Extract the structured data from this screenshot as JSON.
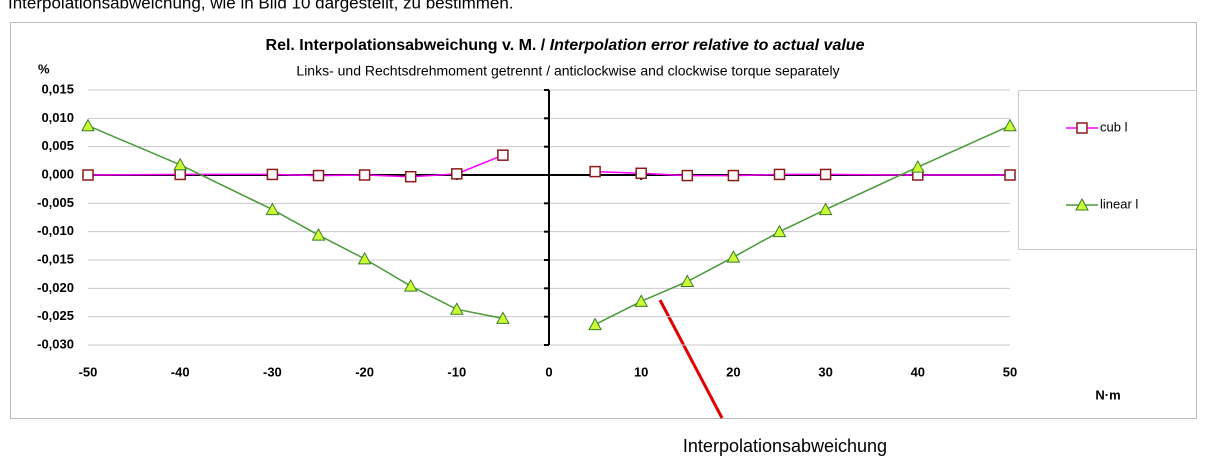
{
  "intro_text": "Interpolationsabweichung, wie in Bild 10 dargestellt, zu bestimmen.",
  "chart_data": {
    "type": "line",
    "title": "Rel. Interpolationsabweichung v. M. / ",
    "title_italic": "Interpolation error relative to actual value",
    "subtitle": "Links- und Rechtsdrehmoment getrennt / anticlockwise and clockwise torque separately",
    "y_label": "%",
    "x_label": "N·m",
    "x": [
      -50,
      -40,
      -30,
      -25,
      -20,
      -15,
      -10,
      -5,
      0,
      5,
      10,
      15,
      20,
      25,
      30,
      40,
      50
    ],
    "series": [
      {
        "name": "cub l",
        "color": "#ff00ff",
        "marker_color": "#8b1a1a",
        "marker": "square",
        "values": [
          0.0,
          0.0001,
          0.0001,
          -0.0001,
          0.0,
          -0.0003,
          0.0002,
          0.0035,
          null,
          0.0006,
          0.0003,
          -0.0001,
          -0.0001,
          0.0001,
          0.0001,
          0.0,
          0.0
        ]
      },
      {
        "name": "linear l",
        "color": "#4a9a3a",
        "marker_color": "#ccff33",
        "marker": "triangle",
        "values": [
          0.0087,
          0.0018,
          -0.0061,
          -0.0106,
          -0.0148,
          -0.0196,
          -0.0237,
          -0.0253,
          null,
          -0.0264,
          -0.0223,
          -0.0188,
          -0.0145,
          -0.01,
          -0.0061,
          0.0014,
          0.0087
        ]
      }
    ],
    "xlim": [
      -50,
      50
    ],
    "xticks": [
      -50,
      -40,
      -30,
      -20,
      -10,
      0,
      10,
      20,
      30,
      40,
      50
    ],
    "ylim": [
      -0.03,
      0.015
    ],
    "yticks": [
      {
        "value": -0.03,
        "label": "-0,030"
      },
      {
        "value": -0.025,
        "label": "-0,025"
      },
      {
        "value": -0.02,
        "label": "-0,020"
      },
      {
        "value": -0.015,
        "label": "-0,015"
      },
      {
        "value": -0.01,
        "label": "-0,010"
      },
      {
        "value": -0.005,
        "label": "-0,005"
      },
      {
        "value": 0,
        "label": "0,000"
      },
      {
        "value": 0.005,
        "label": "0,005"
      },
      {
        "value": 0.01,
        "label": "0,010"
      },
      {
        "value": 0.015,
        "label": "0,015"
      }
    ],
    "grid": true,
    "annotation": "Interpolationsabweichung"
  }
}
